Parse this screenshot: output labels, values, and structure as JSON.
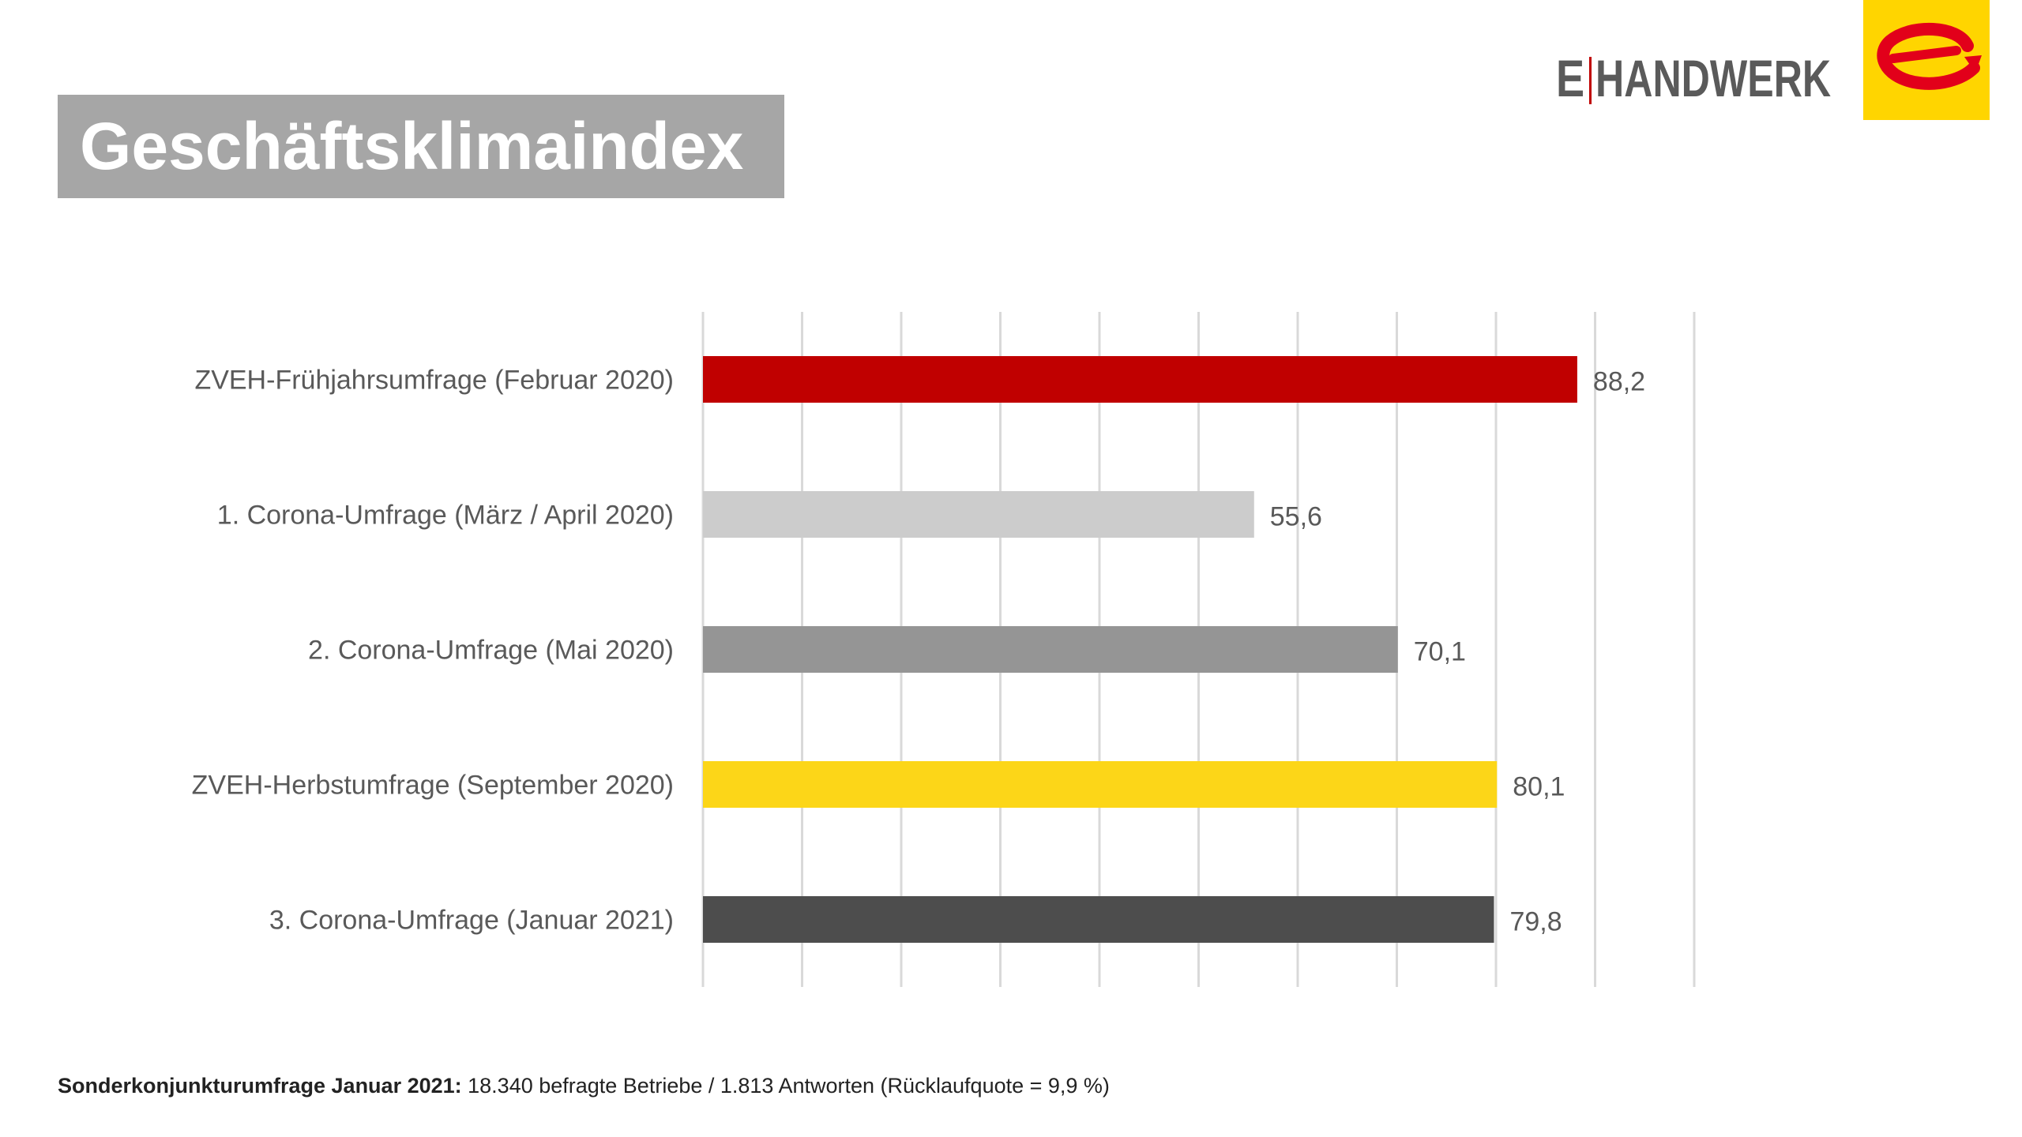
{
  "title": "Geschäftsklimaindex",
  "logo": {
    "text_e": "E",
    "text_word": "HANDWERK",
    "badge_color": "#ffd500",
    "arrow_color": "#e2001a"
  },
  "chart_data": {
    "type": "bar",
    "orientation": "horizontal",
    "categories": [
      "ZVEH-Frühjahrsumfrage (Februar 2020)",
      "1. Corona-Umfrage (März / April 2020)",
      "2. Corona-Umfrage (Mai 2020)",
      "ZVEH-Herbstumfrage (September 2020)",
      "3. Corona-Umfrage (Januar 2021)"
    ],
    "values": [
      88.2,
      55.6,
      70.1,
      80.1,
      79.8
    ],
    "value_labels": [
      "88,2",
      "55,6",
      "70,1",
      "80,1",
      "79,8"
    ],
    "colors": [
      "#c00000",
      "#cccccc",
      "#959595",
      "#fcd618",
      "#4d4d4d"
    ],
    "xlim": [
      0,
      100
    ],
    "grid": true,
    "legend": "none"
  },
  "footer": {
    "bold": "Sonderkonjunkturumfrage Januar 2021:",
    "text": " 18.340 befragte Betriebe / 1.813 Antworten (Rücklaufquote = 9,9 %)"
  }
}
